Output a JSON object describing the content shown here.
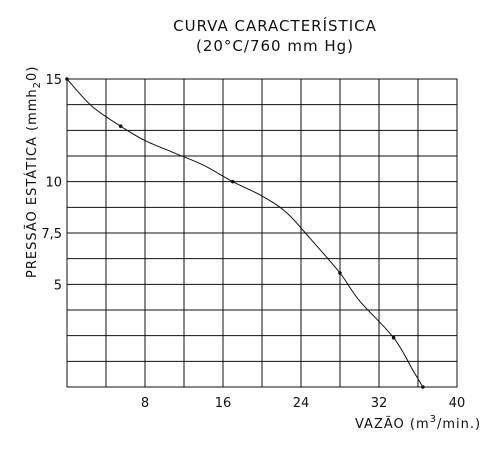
{
  "chart_data": {
    "type": "line",
    "title": "CURVA CARACTERÍSTICA",
    "subtitle": "(20°C/760 mm Hg)",
    "xlabel": "VAZÃO (m³/min.)",
    "ylabel": "PRESSÃO ESTÁTICA (mmH₂0)",
    "xlabel_parts": {
      "pre": "VAZÃO (m",
      "sup": "3",
      "post": "/min.)"
    },
    "ylabel_parts": {
      "pre": "PRESSÃO ESTÁTICA (mmh",
      "sub": "2",
      "post": "0)"
    },
    "x_ticks": [
      8,
      16,
      24,
      32,
      40
    ],
    "y_ticks": [
      5,
      7.5,
      10,
      15
    ],
    "x_tick_labels": [
      "8",
      "16",
      "24",
      "32",
      "40"
    ],
    "y_tick_labels": [
      "5",
      "7,5",
      "10",
      "15"
    ],
    "xlim": [
      0,
      40
    ],
    "ylim": [
      0,
      15
    ],
    "grid": true,
    "grid_x_step": 4,
    "grid_y_step": 1.25,
    "series": [
      {
        "points": [
          [
            0,
            15
          ],
          [
            2.5,
            13.7
          ],
          [
            5.5,
            12.7
          ],
          [
            8,
            12.0
          ],
          [
            11,
            11.4
          ],
          [
            14,
            10.8
          ],
          [
            17,
            10.0
          ],
          [
            20,
            9.3
          ],
          [
            22.5,
            8.5
          ],
          [
            25,
            7.2
          ],
          [
            28,
            5.55
          ],
          [
            30,
            4.2
          ],
          [
            33.5,
            2.4
          ],
          [
            35.5,
            0.8
          ],
          [
            36.5,
            0
          ]
        ],
        "markers": [
          [
            0,
            15
          ],
          [
            5.5,
            12.7
          ],
          [
            17,
            10.0
          ],
          [
            28,
            5.55
          ],
          [
            33.5,
            2.4
          ],
          [
            36.5,
            0
          ]
        ]
      }
    ]
  }
}
